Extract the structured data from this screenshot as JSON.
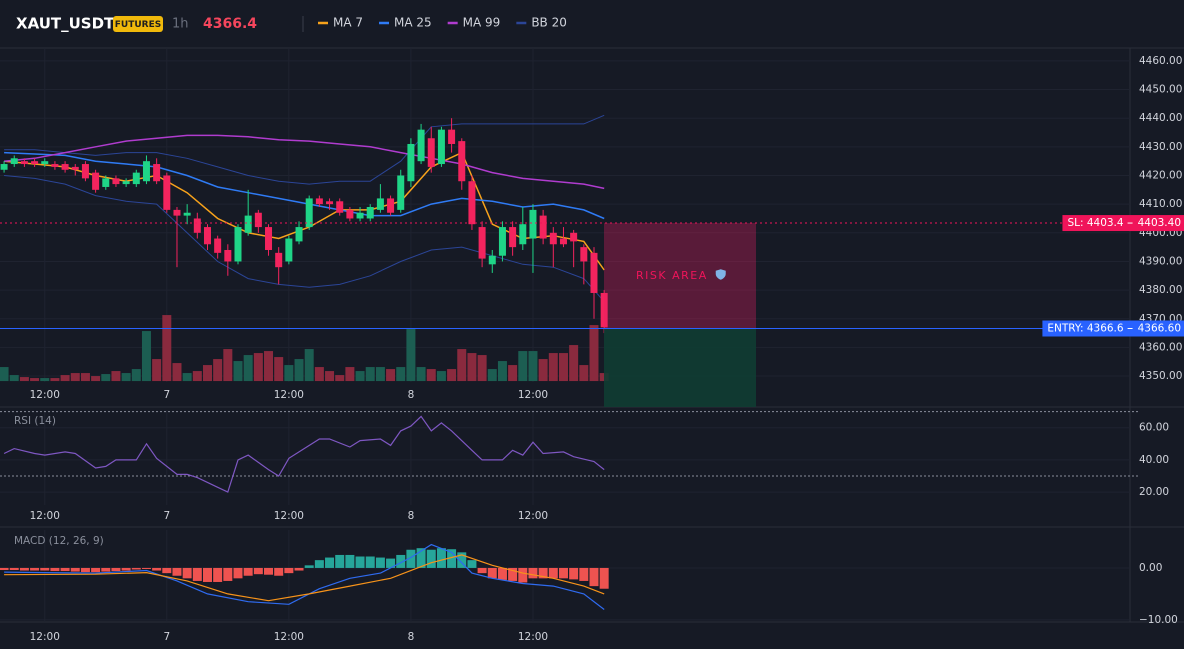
{
  "header": {
    "symbol": "XAUT_USDT",
    "badge": "FUTURES",
    "interval": "1h",
    "price": "4366.4"
  },
  "chart_data": [
    {
      "type": "candlestick",
      "x": [
        -4,
        -3,
        -2,
        -1,
        0,
        1,
        2,
        3,
        4,
        5,
        6,
        7,
        8,
        9,
        10,
        11,
        12,
        13,
        14,
        15,
        16,
        17,
        18,
        19,
        20,
        21,
        22,
        23,
        24,
        25,
        26,
        27,
        28,
        29,
        30,
        31,
        32,
        33,
        34,
        35,
        36,
        37,
        38,
        39,
        40,
        41,
        42,
        43,
        44,
        45,
        46,
        47,
        48,
        49,
        50,
        51,
        52,
        53,
        54,
        55
      ],
      "open": [
        4422,
        4424,
        4425,
        4425,
        4424,
        4424,
        4424,
        4423,
        4424,
        4421,
        4416,
        4419,
        4417,
        4417,
        4418,
        4424,
        4420,
        4408,
        4406,
        4405,
        4402,
        4398,
        4394,
        4390,
        4400,
        4407,
        4402,
        4393,
        4390,
        4397,
        4402,
        4412,
        4411,
        4411,
        4408,
        4405,
        4405,
        4408,
        4412,
        4408,
        4418,
        4425,
        4433,
        4424,
        4436,
        4432,
        4418,
        4402,
        4389,
        4392,
        4402,
        4396,
        4398,
        4406,
        4400,
        4398,
        4400,
        4395,
        4393,
        4379
      ],
      "high": [
        4425,
        4427,
        4426,
        4426,
        4426,
        4425,
        4425,
        4424,
        4425,
        4422,
        4420,
        4420,
        4419,
        4422,
        4427,
        4426,
        4421,
        4409,
        4410,
        4407,
        4403,
        4399,
        4396,
        4403,
        4415,
        4408,
        4403,
        4395,
        4399,
        4404,
        4413,
        4413,
        4412,
        4412,
        4409,
        4409,
        4410,
        4417,
        4413,
        4422,
        4433,
        4438,
        4437,
        4437,
        4440,
        4433,
        4420,
        4404,
        4394,
        4404,
        4404,
        4409,
        4410,
        4408,
        4402,
        4402,
        4401,
        4396,
        4395,
        4380
      ],
      "low": [
        4421,
        4423,
        4423,
        4423,
        4423,
        4422,
        4421,
        4420,
        4418,
        4414,
        4415,
        4416,
        4416,
        4416,
        4417,
        4417,
        4407,
        4388,
        4403,
        4398,
        4394,
        4391,
        4385,
        4389,
        4399,
        4400,
        4392,
        4382,
        4389,
        4396,
        4401,
        4409,
        4408,
        4406,
        4404,
        4404,
        4404,
        4407,
        4406,
        4407,
        4416,
        4424,
        4421,
        4423,
        4428,
        4415,
        4401,
        4388,
        4386,
        4390,
        4392,
        4394,
        4386,
        4396,
        4388,
        4395,
        4388,
        4382,
        4370,
        4365
      ],
      "close": [
        4424,
        4426,
        4424,
        4424,
        4425,
        4423,
        4422,
        4422,
        4419,
        4415,
        4419,
        4417,
        4418,
        4421,
        4425,
        4418,
        4408,
        4406,
        4407,
        4400,
        4396,
        4393,
        4390,
        4402,
        4406,
        4402,
        4394,
        4388,
        4398,
        4402,
        4412,
        4410,
        4410,
        4407,
        4405,
        4407,
        4409,
        4412,
        4407,
        4420,
        4431,
        4436,
        4423,
        4436,
        4431,
        4418,
        4403,
        4391,
        4392,
        4402,
        4395,
        4403,
        4408,
        4398,
        4396,
        4396,
        4397,
        4390,
        4379,
        4367
      ],
      "volume": [
        14,
        6,
        4,
        3,
        3,
        3,
        6,
        8,
        8,
        5,
        7,
        10,
        8,
        12,
        50,
        22,
        66,
        18,
        8,
        10,
        16,
        22,
        32,
        20,
        26,
        28,
        30,
        24,
        16,
        22,
        32,
        14,
        10,
        6,
        14,
        10,
        14,
        14,
        12,
        14,
        52,
        14,
        12,
        10,
        12,
        32,
        28,
        26,
        12,
        20,
        16,
        30,
        30,
        22,
        28,
        28,
        36,
        16,
        56,
        8
      ],
      "up_color": "#1fd587",
      "down_color": "#f3245e",
      "volume_up_color": "#1c5e52",
      "volume_down_color": "#8a2a3e",
      "series": [
        {
          "name": "MA 7",
          "color": "#f7a21b",
          "x": [
            -4,
            -1,
            2,
            5,
            8,
            11,
            14,
            17,
            20,
            23,
            26,
            29,
            32,
            35,
            38,
            41,
            44,
            47,
            50,
            53,
            55
          ],
          "values": [
            4425,
            4424,
            4423,
            4420,
            4418,
            4420,
            4414,
            4405,
            4400,
            4398,
            4402,
            4408,
            4408,
            4411,
            4423,
            4428,
            4403,
            4398,
            4399,
            4397,
            4387
          ]
        },
        {
          "name": "MA 25",
          "color": "#2f7bf5",
          "x": [
            -4,
            -1,
            2,
            5,
            8,
            11,
            14,
            17,
            20,
            23,
            26,
            29,
            32,
            35,
            38,
            41,
            44,
            47,
            50,
            53,
            55
          ],
          "values": [
            4428,
            4427.5,
            4427,
            4425,
            4424,
            4423,
            4420,
            4416,
            4414,
            4412,
            4410,
            4408,
            4406,
            4406,
            4410,
            4412,
            4411,
            4409,
            4410,
            4408,
            4405
          ]
        },
        {
          "name": "MA 99",
          "color": "#b03ccf",
          "x": [
            -4,
            -1,
            2,
            5,
            8,
            11,
            14,
            17,
            20,
            23,
            26,
            29,
            32,
            35,
            38,
            41,
            44,
            47,
            50,
            53,
            55
          ],
          "values": [
            4425,
            4426,
            4428,
            4430,
            4432,
            4433,
            4434,
            4434,
            4433.5,
            4432.5,
            4432,
            4431,
            4430,
            4428,
            4426,
            4424,
            4421,
            4419,
            4418,
            4417,
            4415.5
          ]
        }
      ],
      "bands": {
        "name": "BB 20",
        "color": "#2b4597",
        "x": [
          -4,
          -1,
          2,
          5,
          8,
          11,
          14,
          17,
          20,
          23,
          26,
          29,
          32,
          35,
          38,
          41,
          44,
          47,
          50,
          53,
          55
        ],
        "upper": [
          4429,
          4429,
          4428,
          4427,
          4428,
          4428,
          4426,
          4423,
          4420,
          4418,
          4417,
          4418,
          4418,
          4425,
          4437,
          4438,
          4438,
          4438,
          4438,
          4438,
          4441
        ],
        "lower": [
          4420,
          4419,
          4417,
          4413,
          4411,
          4410,
          4400,
          4390,
          4384,
          4382,
          4381,
          4382,
          4385,
          4390,
          4394,
          4395,
          4392,
          4389,
          4388,
          4384,
          4376
        ]
      },
      "levels": [
        {
          "label": "SL: 4403.4",
          "value": 4403.4,
          "value_label": "4403.40",
          "color": "#f0145a",
          "style": "dashed"
        },
        {
          "label": "ENTRY: 4366.6",
          "value": 4366.6,
          "value_label": "4366.60",
          "color": "#2962ff",
          "style": "solid"
        }
      ],
      "risk_area": {
        "label": "RISK AREA"
      },
      "xlim": [
        -4.4,
        106.7
      ],
      "ylim": [
        4339.2,
        4464.5
      ],
      "xticks": [
        {
          "value": 0,
          "label": "12:00"
        },
        {
          "value": 12,
          "label": "7"
        },
        {
          "value": 24,
          "label": "12:00"
        },
        {
          "value": 36,
          "label": "8"
        },
        {
          "value": 48,
          "label": "12:00"
        }
      ],
      "yticks": [
        {
          "value": 4350,
          "label": "4350.00"
        },
        {
          "value": 4360,
          "label": "4360.00"
        },
        {
          "value": 4370,
          "label": "4370.00"
        },
        {
          "value": 4380,
          "label": "4380.00"
        },
        {
          "value": 4390,
          "label": "4390.00"
        },
        {
          "value": 4400,
          "label": "4400.00"
        },
        {
          "value": 4410,
          "label": "4410.00"
        },
        {
          "value": 4420,
          "label": "4420.00"
        },
        {
          "value": 4430,
          "label": "4430.00"
        },
        {
          "value": 4440,
          "label": "4440.00"
        },
        {
          "value": 4450,
          "label": "4450.00"
        },
        {
          "value": 4460,
          "label": "4460.00"
        }
      ],
      "grid": true
    },
    {
      "type": "line",
      "title": "RSI (14)",
      "series": [
        {
          "color": "#7e57c2",
          "x": [
            -4,
            -3,
            -1,
            0,
            2,
            3,
            5,
            6,
            7,
            9,
            10,
            11,
            13,
            14,
            15,
            17,
            18,
            19,
            20,
            22,
            23,
            24,
            27,
            28,
            30,
            31,
            33,
            34,
            35,
            36,
            37,
            38,
            39,
            40,
            42,
            43,
            45,
            46,
            47,
            48,
            49,
            51,
            52,
            54,
            55
          ],
          "values": [
            44,
            47,
            44,
            43,
            45,
            44,
            35,
            36,
            40,
            40,
            50,
            41,
            31,
            31,
            29,
            23,
            20,
            40,
            43,
            34,
            30,
            41,
            53,
            53,
            48,
            52,
            53,
            49,
            58,
            61,
            67,
            58,
            63,
            58,
            46,
            40,
            40,
            46,
            43,
            51,
            44,
            45,
            42,
            39,
            34
          ]
        }
      ],
      "hlines": [
        70,
        30
      ],
      "xlim": [
        -4.4,
        106.7
      ],
      "ylim": [
        12,
        71
      ],
      "xticks": [
        {
          "value": 0,
          "label": "12:00"
        },
        {
          "value": 12,
          "label": "7"
        },
        {
          "value": 24,
          "label": "12:00"
        },
        {
          "value": 36,
          "label": "8"
        },
        {
          "value": 48,
          "label": "12:00"
        }
      ],
      "yticks": [
        {
          "value": 60,
          "label": "60.00"
        },
        {
          "value": 40,
          "label": "40.00"
        },
        {
          "value": 20,
          "label": "20.00"
        }
      ],
      "grid": true
    },
    {
      "type": "line",
      "title": "MACD (12, 26, 9)",
      "x": [
        -4,
        -3,
        -2,
        -1,
        0,
        1,
        2,
        3,
        4,
        5,
        6,
        7,
        8,
        9,
        10,
        11,
        12,
        13,
        14,
        15,
        16,
        17,
        18,
        19,
        20,
        21,
        22,
        23,
        24,
        25,
        26,
        27,
        28,
        29,
        30,
        31,
        32,
        33,
        34,
        35,
        36,
        37,
        38,
        39,
        40,
        41,
        42,
        43,
        44,
        45,
        46,
        47,
        48,
        49,
        50,
        51,
        52,
        53,
        54,
        55
      ],
      "histogram": [
        -0.4,
        -0.4,
        -0.5,
        -0.5,
        -0.5,
        -0.6,
        -0.6,
        -0.7,
        -0.8,
        -0.8,
        -0.7,
        -0.6,
        -0.5,
        -0.3,
        -0.2,
        -0.5,
        -1,
        -1.5,
        -2,
        -2.5,
        -2.7,
        -2.7,
        -2.5,
        -2,
        -1.5,
        -1.2,
        -1.3,
        -1.5,
        -1,
        -0.5,
        0.5,
        1.5,
        2,
        2.5,
        2.5,
        2.2,
        2.2,
        2,
        1.8,
        2.5,
        3.5,
        3.8,
        3.5,
        3.8,
        3.6,
        3,
        1.5,
        -1,
        -2,
        -2.3,
        -2.5,
        -2.8,
        -2,
        -2,
        -2,
        -2,
        -2.2,
        -2.5,
        -3.5,
        -4
      ],
      "up_color": "#26a69a",
      "down_color": "#ef5350",
      "series": [
        {
          "color": "#2f6bf0",
          "x": [
            -4,
            0,
            5,
            10,
            13,
            16,
            20,
            24,
            27,
            30,
            33,
            36,
            38,
            40,
            42,
            44,
            47,
            50,
            53,
            55
          ],
          "values": [
            -0.8,
            -0.9,
            -1,
            -0.5,
            -2.5,
            -5,
            -6.5,
            -7,
            -4,
            -2,
            -1,
            2,
            4.5,
            3,
            -1,
            -2,
            -3,
            -3.5,
            -5,
            -8
          ]
        },
        {
          "color": "#f7931a",
          "x": [
            -4,
            5,
            10,
            14,
            18,
            22,
            26,
            30,
            34,
            38,
            41,
            44,
            47,
            50,
            53,
            55
          ],
          "values": [
            -1.3,
            -1.2,
            -0.9,
            -2.5,
            -5,
            -6.3,
            -5,
            -3.5,
            -2,
            1,
            2.5,
            0.5,
            -1,
            -2,
            -3.5,
            -5
          ]
        }
      ],
      "xlim": [
        -4.4,
        106.7
      ],
      "ylim": [
        -10.4,
        7.3
      ],
      "xticks": [
        {
          "value": 0,
          "label": "12:00"
        },
        {
          "value": 12,
          "label": "7"
        },
        {
          "value": 24,
          "label": "12:00"
        },
        {
          "value": 36,
          "label": "8"
        },
        {
          "value": 48,
          "label": "12:00"
        }
      ],
      "yticks": [
        {
          "value": 0,
          "label": "0.00"
        },
        {
          "value": -10,
          "label": "−10.00"
        }
      ],
      "grid": true
    }
  ]
}
